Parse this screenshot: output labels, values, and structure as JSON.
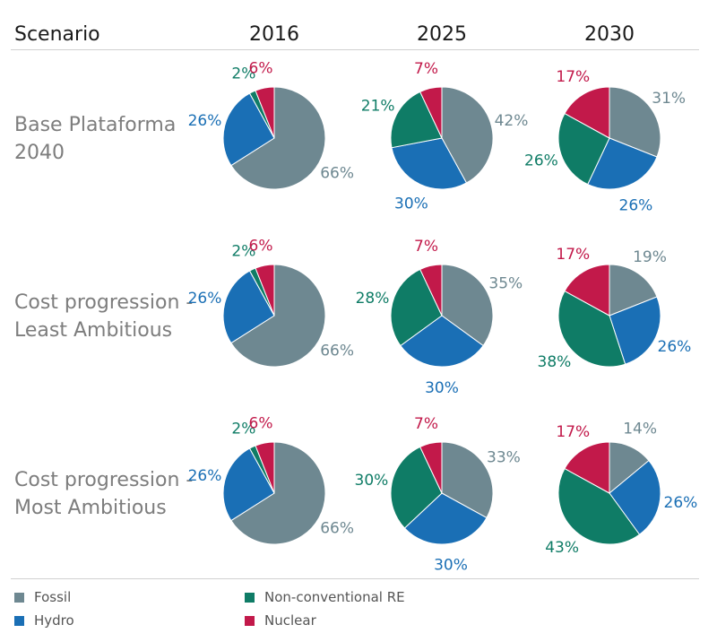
{
  "header": {
    "scenario_label": "Scenario",
    "years": [
      "2016",
      "2025",
      "2030"
    ]
  },
  "colors": {
    "Fossil": "#6e8891",
    "Hydro": "#1a6fb5",
    "Non-conventional RE": "#0f7c66",
    "Nuclear": "#c2194a"
  },
  "legend": [
    {
      "label": "Fossil",
      "key": "Fossil"
    },
    {
      "label": "Non-conventional RE",
      "key": "Non-conventional RE"
    },
    {
      "label": "Hydro",
      "key": "Hydro"
    },
    {
      "label": "Nuclear",
      "key": "Nuclear"
    }
  ],
  "chart_data": {
    "type": "pie",
    "series_order": [
      "Fossil",
      "Hydro",
      "Non-conventional RE",
      "Nuclear"
    ],
    "rows": [
      {
        "scenario": "Base Plataforma\n2040",
        "pies": [
          {
            "year": "2016",
            "values": {
              "Fossil": 66,
              "Hydro": 26,
              "Non-conventional RE": 2,
              "Nuclear": 6
            }
          },
          {
            "year": "2025",
            "values": {
              "Fossil": 42,
              "Hydro": 30,
              "Non-conventional RE": 21,
              "Nuclear": 7
            }
          },
          {
            "year": "2030",
            "values": {
              "Fossil": 31,
              "Hydro": 26,
              "Non-conventional RE": 26,
              "Nuclear": 17
            }
          }
        ]
      },
      {
        "scenario": "Cost progression -\nLeast Ambitious",
        "pies": [
          {
            "year": "2016",
            "values": {
              "Fossil": 66,
              "Hydro": 26,
              "Non-conventional RE": 2,
              "Nuclear": 6
            }
          },
          {
            "year": "2025",
            "values": {
              "Fossil": 35,
              "Hydro": 30,
              "Non-conventional RE": 28,
              "Nuclear": 7
            }
          },
          {
            "year": "2030",
            "values": {
              "Fossil": 19,
              "Hydro": 26,
              "Non-conventional RE": 38,
              "Nuclear": 17
            }
          }
        ]
      },
      {
        "scenario": "Cost progression -\nMost Ambitious",
        "pies": [
          {
            "year": "2016",
            "values": {
              "Fossil": 66,
              "Hydro": 26,
              "Non-conventional RE": 2,
              "Nuclear": 6
            }
          },
          {
            "year": "2025",
            "values": {
              "Fossil": 33,
              "Hydro": 30,
              "Non-conventional RE": 30,
              "Nuclear": 7
            }
          },
          {
            "year": "2030",
            "values": {
              "Fossil": 14,
              "Hydro": 26,
              "Non-conventional RE": 43,
              "Nuclear": 17
            }
          }
        ]
      }
    ]
  }
}
